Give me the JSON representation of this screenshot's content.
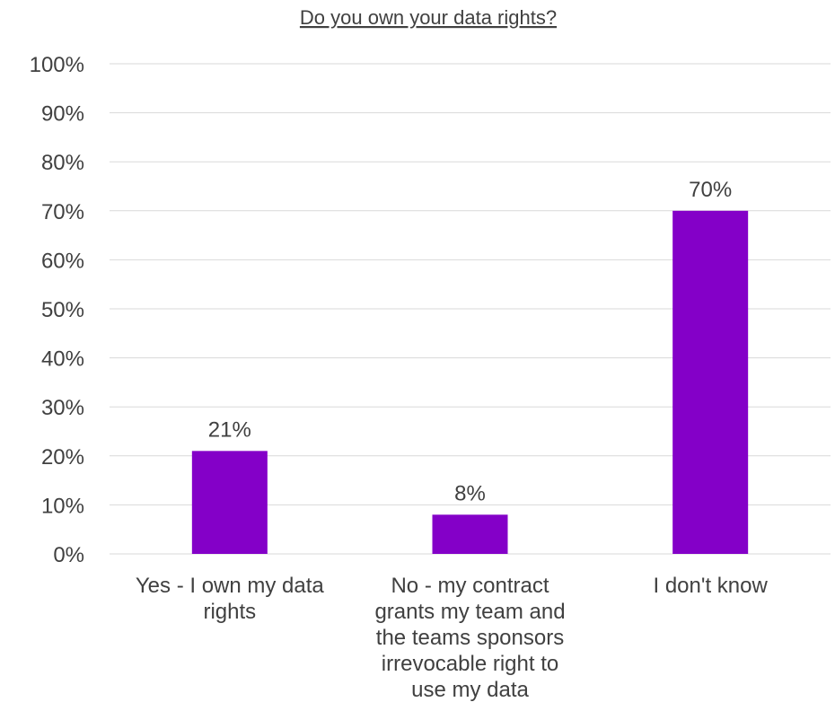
{
  "chart_data": {
    "type": "bar",
    "title": "Do you own your data rights?",
    "categories": [
      "Yes - I own my data rights",
      "No - my contract grants my team and the teams sponsors irrevocable right to use my data",
      "I don't know"
    ],
    "category_lines": [
      [
        "Yes - I own my data",
        "rights"
      ],
      [
        "No - my contract",
        "grants my team and",
        "the teams sponsors",
        "irrevocable right to",
        "use my data"
      ],
      [
        "I don't know"
      ]
    ],
    "values": [
      21,
      8,
      70
    ],
    "data_labels": [
      "21%",
      "8%",
      "70%"
    ],
    "ylim": [
      0,
      100
    ],
    "yticks": [
      "0%",
      "10%",
      "20%",
      "30%",
      "40%",
      "50%",
      "60%",
      "70%",
      "80%",
      "90%",
      "100%"
    ],
    "grid": true,
    "legend": "none",
    "bar_color": "#8400c8"
  }
}
